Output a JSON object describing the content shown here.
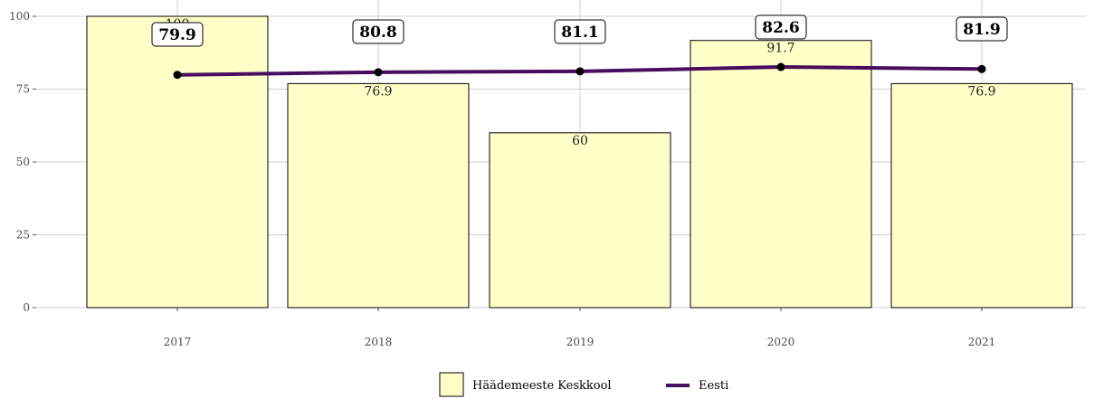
{
  "chart_data": {
    "type": "bar",
    "categories": [
      "2017",
      "2018",
      "2019",
      "2020",
      "2021"
    ],
    "series": [
      {
        "name": "Häädemeeste Keskkool",
        "type": "bar",
        "values": [
          100,
          76.9,
          60,
          91.7,
          76.9
        ],
        "labels": [
          "100",
          "76.9",
          "60",
          "91.7",
          "76.9"
        ],
        "color": "#ffffc8"
      },
      {
        "name": "Eesti",
        "type": "line",
        "values": [
          79.9,
          80.8,
          81.1,
          82.6,
          81.9
        ],
        "labels": [
          "79.9",
          "80.8",
          "81.1",
          "82.6",
          "81.9"
        ],
        "color": "#4a0d5e"
      }
    ],
    "y_ticks": [
      "0",
      "25",
      "50",
      "75",
      "100"
    ],
    "ylim": [
      0,
      100
    ],
    "grid": true,
    "legend_position": "bottom"
  }
}
